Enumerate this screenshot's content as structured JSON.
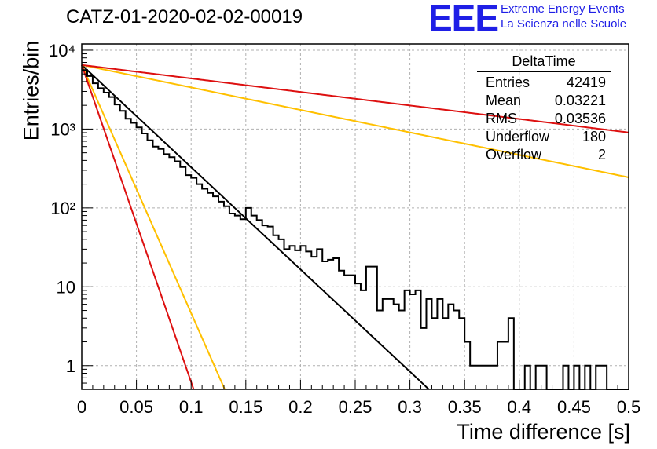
{
  "title": "CATZ-01-2020-02-02-00019",
  "logo": {
    "mark": "EEE",
    "line1": "Extreme Energy Events",
    "line2": "La Scienza nelle Scuole",
    "color": "#1f1fe6"
  },
  "stats": {
    "name": "DeltaTime",
    "rows": [
      {
        "label": "Entries",
        "value": "42419"
      },
      {
        "label": "Mean",
        "value": "0.03221"
      },
      {
        "label": "RMS",
        "value": "0.03536"
      },
      {
        "label": "Underflow",
        "value": "180"
      },
      {
        "label": "Overflow",
        "value": "2"
      }
    ]
  },
  "chart_data": {
    "type": "line",
    "xlabel": "Time difference [s]",
    "ylabel": "Entries/bin",
    "xlim": [
      0,
      0.5
    ],
    "ylim": [
      0.5,
      12000
    ],
    "log_y": true,
    "grid": true,
    "x_ticks": [
      "0",
      "0.05",
      "0.1",
      "0.15",
      "0.2",
      "0.25",
      "0.3",
      "0.35",
      "0.4",
      "0.45",
      "0.5"
    ],
    "y_ticks": [
      {
        "value": 1,
        "label": "1"
      },
      {
        "value": 10,
        "label": "10"
      },
      {
        "value": 100,
        "label": "10²"
      },
      {
        "value": 1000,
        "label": "10³"
      },
      {
        "value": 10000,
        "label": "10⁴"
      }
    ],
    "histogram": {
      "bin_width": 0.005,
      "color": "#000000",
      "counts": [
        5600,
        4700,
        3800,
        3300,
        2900,
        2550,
        2050,
        1700,
        1350,
        1200,
        1050,
        880,
        720,
        600,
        560,
        480,
        440,
        390,
        330,
        260,
        240,
        200,
        175,
        155,
        140,
        120,
        105,
        85,
        80,
        72,
        100,
        80,
        70,
        60,
        58,
        45,
        40,
        30,
        33,
        29,
        33,
        28,
        24,
        30,
        21,
        22,
        23,
        16,
        14,
        14,
        11,
        9,
        18,
        18,
        5,
        7,
        7,
        6,
        5,
        9,
        8,
        9,
        3,
        7,
        4,
        7,
        4,
        6,
        5,
        4,
        2,
        1,
        1,
        1,
        1,
        1,
        2,
        2,
        4,
        0,
        0,
        1,
        0,
        1,
        1,
        0,
        0,
        0,
        1,
        0,
        1,
        0,
        1,
        0,
        1,
        1,
        0,
        0,
        0,
        0
      ]
    },
    "fits": [
      {
        "color": "#000000",
        "A": 6500,
        "tau": 0.0335
      },
      {
        "color": "#ffc000",
        "A": 6500,
        "tau": 0.0138
      },
      {
        "color": "#dd1010",
        "A": 6500,
        "tau": 0.0108
      },
      {
        "color": "#ffc000",
        "A": 6500,
        "tau": 0.1523
      },
      {
        "color": "#dd1010",
        "A": 6500,
        "tau": 0.2535
      }
    ]
  }
}
